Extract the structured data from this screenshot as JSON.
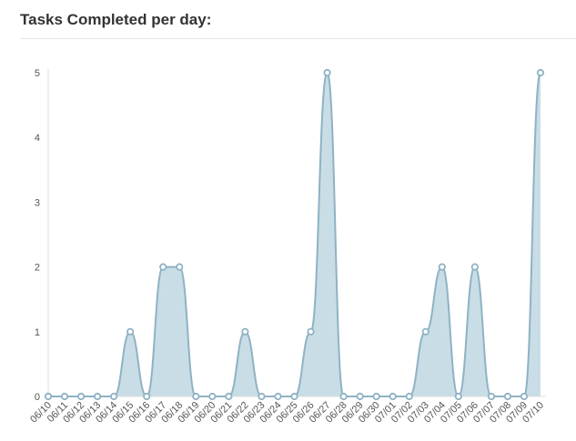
{
  "panel": {
    "title": "Tasks Completed per day:"
  },
  "chart_data": {
    "type": "area",
    "title": "Tasks Completed per day:",
    "xlabel": "",
    "ylabel": "",
    "ylim": [
      0,
      5
    ],
    "y_ticks": [
      "0",
      "1",
      "2",
      "3",
      "4",
      "5"
    ],
    "grid": false,
    "x": [
      "06/10",
      "06/11",
      "06/12",
      "06/13",
      "06/14",
      "06/15",
      "06/16",
      "06/17",
      "06/18",
      "06/19",
      "06/20",
      "06/21",
      "06/22",
      "06/23",
      "06/24",
      "06/25",
      "06/26",
      "06/27",
      "06/28",
      "06/29",
      "06/30",
      "07/01",
      "07/02",
      "07/03",
      "07/04",
      "07/05",
      "07/06",
      "07/07",
      "07/08",
      "07/09",
      "07/10"
    ],
    "series": [
      {
        "values": [
          0,
          0,
          0,
          0,
          0,
          1,
          0,
          2,
          2,
          0,
          0,
          0,
          1,
          0,
          0,
          0,
          1,
          5,
          0,
          0,
          0,
          0,
          0,
          1,
          2,
          0,
          2,
          0,
          0,
          0,
          5
        ]
      }
    ],
    "colors": {
      "fill": "#c9dde7",
      "line": "#8fb2c4",
      "point_fill": "#ffffff",
      "axis": "#dcdcdc"
    }
  }
}
